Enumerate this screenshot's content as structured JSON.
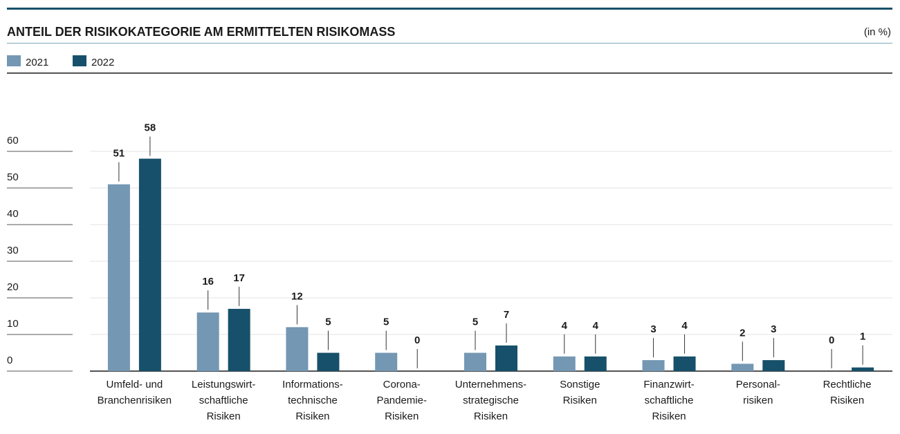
{
  "chart_data": {
    "type": "bar",
    "title": "ANTEIL DER RISIKOKATEGORIE AM ERMITTELTEN RISIKOMASS",
    "unit": "(in %)",
    "categories": [
      [
        "Umfeld- und",
        "Branchenrisiken"
      ],
      [
        "Leistungswirt-",
        "schaftliche",
        "Risiken"
      ],
      [
        "Informations-",
        "technische",
        "Risiken"
      ],
      [
        "Corona-",
        "Pandemie-",
        "Risiken"
      ],
      [
        "Unternehmens-",
        "strategische",
        "Risiken"
      ],
      [
        "Sonstige",
        "Risiken"
      ],
      [
        "Finanzwirt-",
        "schaftliche",
        "Risiken"
      ],
      [
        "Personal-",
        "risiken"
      ],
      [
        "Rechtliche",
        "Risiken"
      ]
    ],
    "series": [
      {
        "name": "2021",
        "color": "#7497b3",
        "values": [
          51,
          16,
          12,
          5,
          5,
          4,
          3,
          2,
          0
        ]
      },
      {
        "name": "2022",
        "color": "#17506a",
        "values": [
          58,
          17,
          5,
          0,
          7,
          4,
          4,
          3,
          1
        ]
      }
    ],
    "ylim": [
      0,
      60
    ],
    "yticks": [
      0,
      10,
      20,
      30,
      40,
      50,
      60
    ],
    "grid": true
  }
}
